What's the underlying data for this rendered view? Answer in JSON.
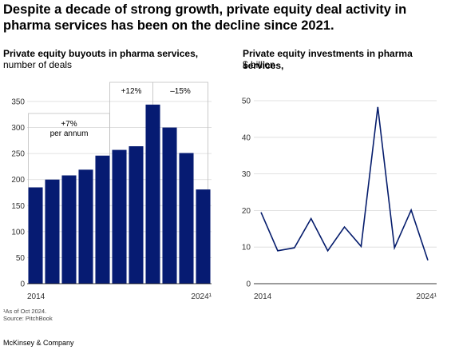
{
  "headline": "Despite a decade of strong growth, private equity deal activity in pharma services has been on the decline since 2021.",
  "charts": {
    "left": {
      "title": "Private equity buyouts in pharma services,",
      "subtitle": "number of deals",
      "annotations": {
        "growth_rate": "+7%",
        "growth_rate_note": "per annum",
        "increase": "+12%",
        "decrease": "–15%"
      }
    },
    "right": {
      "title": "Private equity investments in pharma services,",
      "subtitle": "$ billion"
    }
  },
  "footnote": "¹As of Oct 2024.",
  "source": "Source: PitchBook",
  "brand": "McKinsey & Company",
  "colors": {
    "bar": "#061b72",
    "line": "#051c6c",
    "grid": "#d9d9d9",
    "bracket": "#bdbdbd"
  },
  "chart_data": [
    {
      "type": "bar",
      "categories": [
        "2014",
        "2015",
        "2016",
        "2017",
        "2018",
        "2019",
        "2020",
        "2021",
        "2022",
        "2023",
        "2024¹"
      ],
      "category_labels_shown": [
        "2014",
        "",
        "",
        "",
        "",
        "",
        "",
        "",
        "",
        "",
        "2024¹"
      ],
      "values": [
        185,
        200,
        208,
        219,
        246,
        257,
        264,
        344,
        300,
        251,
        181
      ],
      "ylim": [
        0,
        350
      ],
      "yticks": [
        "0",
        "50",
        "100",
        "150",
        "200",
        "250",
        "300",
        "350"
      ],
      "grid": true
    },
    {
      "type": "line",
      "categories": [
        "2014",
        "2015",
        "2016",
        "2017",
        "2018",
        "2019",
        "2020",
        "2021",
        "2022",
        "2023",
        "2024¹"
      ],
      "category_labels_shown": [
        "2014",
        "",
        "",
        "",
        "",
        "",
        "",
        "",
        "",
        "",
        "2024¹"
      ],
      "values": [
        19.5,
        9.0,
        9.8,
        17.8,
        9.0,
        15.5,
        10.2,
        48.3,
        9.8,
        20.1,
        6.4
      ],
      "ylim": [
        0,
        50
      ],
      "yticks": [
        "0",
        "10",
        "20",
        "30",
        "40",
        "50"
      ],
      "grid": true
    }
  ]
}
